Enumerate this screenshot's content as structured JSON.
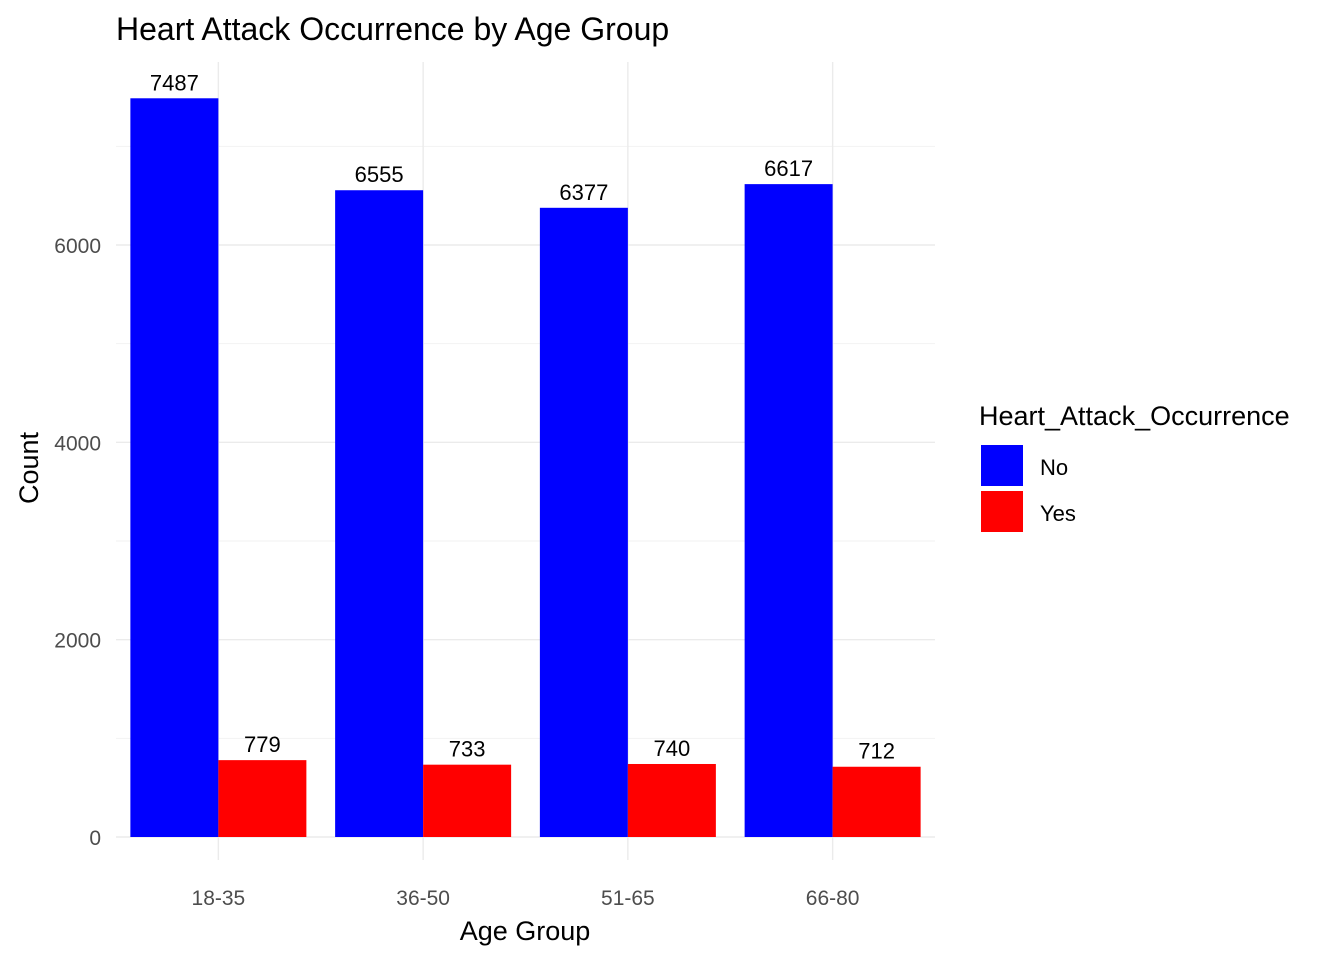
{
  "chart_data": {
    "type": "bar",
    "title": "Heart Attack Occurrence by Age Group",
    "xlabel": "Age Group",
    "ylabel": "Count",
    "categories": [
      "18-35",
      "36-50",
      "51-65",
      "66-80"
    ],
    "series": [
      {
        "name": "No",
        "values": [
          7487,
          6555,
          6377,
          6617
        ],
        "color": "#0000ff"
      },
      {
        "name": "Yes",
        "values": [
          779,
          733,
          740,
          712
        ],
        "color": "#ff0000"
      }
    ],
    "ylim": [
      0,
      8000
    ],
    "yticks": [
      0,
      2000,
      4000,
      6000
    ],
    "legend": {
      "title": "Heart_Attack_Occurrence",
      "position": "right"
    },
    "grid": true
  }
}
